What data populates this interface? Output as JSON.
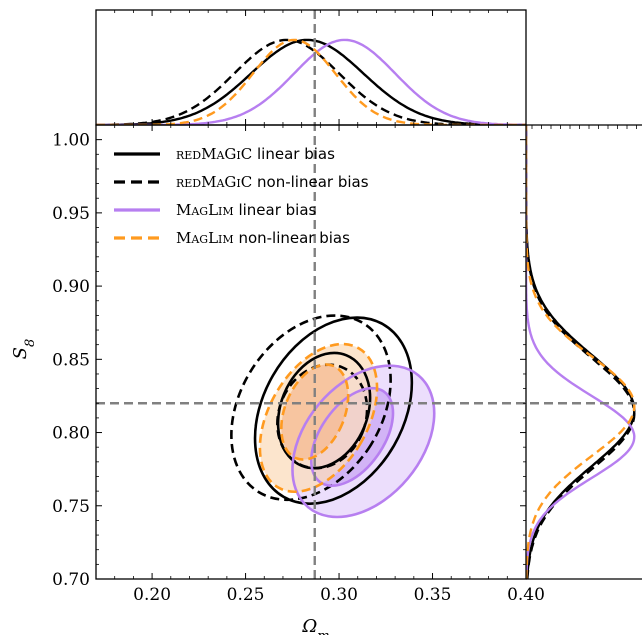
{
  "chart_data": {
    "type": "contour",
    "xlabel": "Ω_m",
    "ylabel": "S_8",
    "xlim": [
      0.17,
      0.4
    ],
    "ylim": [
      0.7,
      1.01
    ],
    "x_ticks": [
      "0.20",
      "0.25",
      "0.30",
      "0.35",
      "0.40"
    ],
    "y_ticks": [
      "0.70",
      "0.75",
      "0.80",
      "0.85",
      "0.90",
      "0.95",
      "1.00"
    ],
    "fiducial": {
      "Omega_m": 0.287,
      "S8": 0.82
    },
    "legend": [
      {
        "prefix": "redMaGiC",
        "suffix": " linear bias",
        "color": "#000000",
        "dash": "solid"
      },
      {
        "prefix": "redMaGiC",
        "suffix": " non-linear bias",
        "color": "#000000",
        "dash": "dashed"
      },
      {
        "prefix": "MagLim",
        "suffix": " linear bias",
        "color": "#b77ff0",
        "dash": "solid"
      },
      {
        "prefix": "MagLim",
        "suffix": " non-linear bias",
        "color": "#ff9a1f",
        "dash": "dashed"
      }
    ],
    "series": [
      {
        "name": "redMaGiC linear bias",
        "color": "#000000",
        "dash": "solid",
        "filled": false,
        "marginal_omega": {
          "mean": 0.283,
          "sigma": 0.03
        },
        "marginal_s8": {
          "mean": 0.815,
          "sigma": 0.038
        },
        "contours": [
          {
            "level": "68%",
            "center": [
              0.292,
              0.815
            ],
            "axes": [
              0.0232,
              0.0407
            ],
            "angle_deg": 22
          },
          {
            "level": "95%",
            "center": [
              0.297,
              0.815
            ],
            "axes": [
              0.0374,
              0.068
            ],
            "angle_deg": 30
          }
        ]
      },
      {
        "name": "redMaGiC non-linear bias",
        "color": "#000000",
        "dash": "dashed",
        "filled": false,
        "marginal_omega": {
          "mean": 0.272,
          "sigma": 0.028
        },
        "marginal_s8": {
          "mean": 0.813,
          "sigma": 0.038
        },
        "contours": [
          {
            "level": "68%",
            "center": [
              0.291,
              0.811
            ],
            "axes": [
              0.0232,
              0.0362
            ],
            "angle_deg": 22
          },
          {
            "level": "95%",
            "center": [
              0.285,
              0.817
            ],
            "axes": [
              0.0377,
              0.0678
            ],
            "angle_deg": 32
          }
        ]
      },
      {
        "name": "MagLim linear bias",
        "color": "#b77ff0",
        "fill": "#e6d3fb",
        "fill_inner": "#c9a5f4",
        "dash": "solid",
        "filled": true,
        "marginal_omega": {
          "mean": 0.303,
          "sigma": 0.027
        },
        "marginal_s8": {
          "mean": 0.797,
          "sigma": 0.028
        },
        "contours": [
          {
            "level": "68%",
            "center": [
              0.307,
              0.797
            ],
            "axes": [
              0.0168,
              0.0378
            ],
            "angle_deg": 35
          },
          {
            "level": "95%",
            "center": [
              0.313,
              0.794
            ],
            "axes": [
              0.031,
              0.0587
            ],
            "angle_deg": 40
          }
        ]
      },
      {
        "name": "MagLim non-linear bias",
        "color": "#ff9a1f",
        "fill": "#fbdcbc",
        "fill_inner": "#f5b990",
        "dash": "dashed",
        "filled": true,
        "marginal_omega": {
          "mean": 0.276,
          "sigma": 0.022
        },
        "marginal_s8": {
          "mean": 0.818,
          "sigma": 0.034
        },
        "contours": [
          {
            "level": "68%",
            "center": [
              0.287,
              0.814
            ],
            "axes": [
              0.016,
              0.034
            ],
            "angle_deg": 22
          },
          {
            "level": "95%",
            "center": [
              0.289,
              0.81
            ],
            "axes": [
              0.0263,
              0.0549
            ],
            "angle_deg": 30
          }
        ]
      }
    ]
  }
}
